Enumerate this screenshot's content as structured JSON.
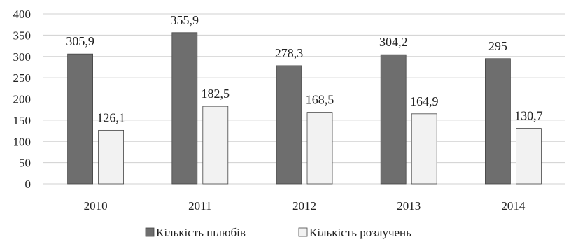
{
  "chart_data": {
    "type": "bar",
    "categories": [
      "2010",
      "2011",
      "2012",
      "2013",
      "2014"
    ],
    "series": [
      {
        "name": "Кількість шлюбів",
        "values": [
          305.9,
          355.9,
          278.3,
          304.2,
          295
        ],
        "labels": [
          "305,9",
          "355,9",
          "278,3",
          "304,2",
          "295"
        ],
        "color": "#6e6e6e"
      },
      {
        "name": "Кількість розлучень",
        "values": [
          126.1,
          182.5,
          168.5,
          164.9,
          130.7
        ],
        "labels": [
          "126,1",
          "182,5",
          "168,5",
          "164,9",
          "130,7"
        ],
        "color": "#f2f2f2"
      }
    ],
    "yticks": [
      0,
      50,
      100,
      150,
      200,
      250,
      300,
      350,
      400
    ],
    "ylim": [
      0,
      400
    ],
    "grid": true,
    "legend_position": "bottom"
  }
}
